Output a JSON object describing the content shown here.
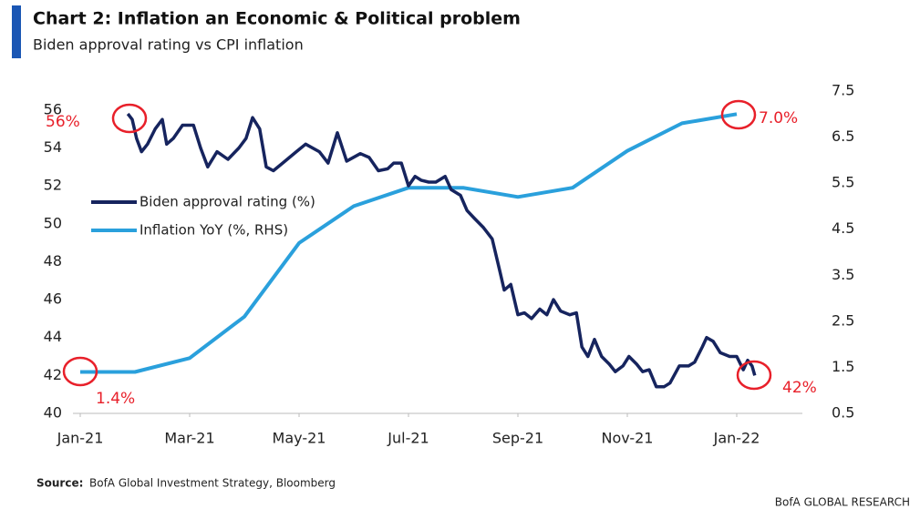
{
  "chart_data": {
    "type": "line",
    "title": "Chart 2: Inflation an Economic & Political problem",
    "subtitle": "Biden approval rating vs CPI inflation",
    "source_label": "Source:",
    "source": "BofA Global Investment Strategy, Bloomberg",
    "brand": "BofA GLOBAL RESEARCH",
    "xlim": [
      0,
      13
    ],
    "xticks": [
      {
        "value": 0,
        "label": "Jan-21"
      },
      {
        "value": 2,
        "label": "Mar-21"
      },
      {
        "value": 4,
        "label": "May-21"
      },
      {
        "value": 6,
        "label": "Jul-21"
      },
      {
        "value": 8,
        "label": "Sep-21"
      },
      {
        "value": 10,
        "label": "Nov-21"
      },
      {
        "value": 12,
        "label": "Jan-22"
      }
    ],
    "ylim": [
      40,
      57
    ],
    "yticks": [
      40,
      42,
      44,
      46,
      48,
      50,
      52,
      54,
      56
    ],
    "y2lim": [
      0.5,
      7.5
    ],
    "y2ticks": [
      0.5,
      1.5,
      2.5,
      3.5,
      4.5,
      5.5,
      6.5,
      7.5
    ],
    "legend": "upper left",
    "series": [
      {
        "name": "Biden approval rating (%)",
        "color": "#16245e",
        "x": [
          0.87,
          0.95,
          1.03,
          1.12,
          1.23,
          1.37,
          1.5,
          1.58,
          1.7,
          1.87,
          2.07,
          2.2,
          2.33,
          2.5,
          2.7,
          2.9,
          3.03,
          3.15,
          3.28,
          3.4,
          3.53,
          3.7,
          3.95,
          4.12,
          4.37,
          4.53,
          4.7,
          4.87,
          5.12,
          5.28,
          5.45,
          5.62,
          5.73,
          5.87,
          6,
          6.12,
          6.23,
          6.37,
          6.5,
          6.67,
          6.78,
          6.95,
          7.07,
          7.2,
          7.37,
          7.53,
          7.67,
          7.75,
          7.87,
          8,
          8.12,
          8.25,
          8.4,
          8.53,
          8.65,
          8.78,
          8.95,
          9.07,
          9.17,
          9.28,
          9.4,
          9.53,
          9.67,
          9.78,
          9.92,
          10.03,
          10.17,
          10.28,
          10.4,
          10.53,
          10.67,
          10.78,
          10.95,
          11.12,
          11.23,
          11.37,
          11.45,
          11.57,
          11.7,
          11.87,
          12,
          12.12,
          12.2,
          12.28,
          12.33
        ],
        "values": [
          55.8,
          55.5,
          54.5,
          53.8,
          54.2,
          55.0,
          55.5,
          54.2,
          54.5,
          55.2,
          55.2,
          54.0,
          53.0,
          53.8,
          53.4,
          54.0,
          54.5,
          55.6,
          55.0,
          53.0,
          52.8,
          53.2,
          53.8,
          54.2,
          53.8,
          53.2,
          54.8,
          53.3,
          53.7,
          53.5,
          52.8,
          52.9,
          53.2,
          53.2,
          52.0,
          52.5,
          52.3,
          52.2,
          52.2,
          52.5,
          51.8,
          51.5,
          50.7,
          50.3,
          49.8,
          49.2,
          47.5,
          46.5,
          46.8,
          45.2,
          45.3,
          45.0,
          45.5,
          45.2,
          46.0,
          45.4,
          45.2,
          45.3,
          43.5,
          43.0,
          43.9,
          43.0,
          42.6,
          42.2,
          42.5,
          43.0,
          42.6,
          42.2,
          42.3,
          41.4,
          41.4,
          41.6,
          42.5,
          42.5,
          42.7,
          43.5,
          44.0,
          43.8,
          43.2,
          43.0,
          43.0,
          42.3,
          42.8,
          42.5,
          42.0
        ]
      },
      {
        "name": "Inflation YoY (%, RHS)",
        "color": "#2aa0dc",
        "axis": "y2",
        "x": [
          0,
          1,
          2,
          3,
          4,
          5,
          6,
          7,
          8,
          9,
          10,
          11,
          12
        ],
        "values": [
          1.4,
          1.4,
          1.7,
          2.6,
          4.2,
          5.0,
          5.4,
          5.4,
          5.2,
          5.4,
          6.2,
          6.8,
          7.0
        ]
      }
    ],
    "annotations": [
      {
        "text": "56%",
        "value": 56
      },
      {
        "text": "7.0%",
        "value": 7.0
      },
      {
        "text": "1.4%",
        "value": 1.4
      },
      {
        "text": "42%",
        "value": 42
      }
    ]
  }
}
